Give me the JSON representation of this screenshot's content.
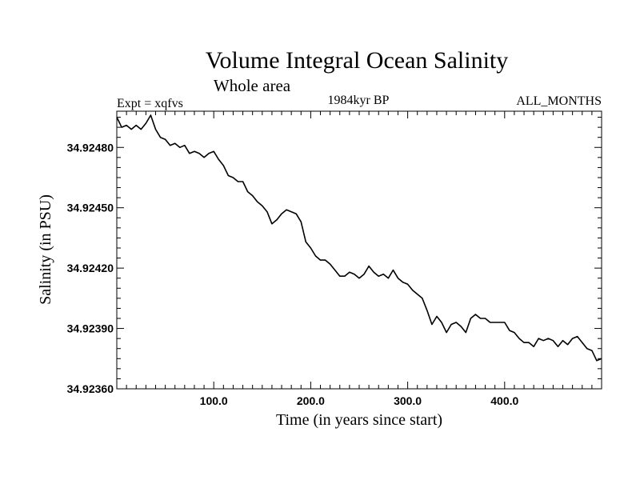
{
  "chart_data": {
    "type": "line",
    "title": "Volume Integral Ocean Salinity",
    "subtitle": "Whole area",
    "label_left": "Expt = xqfvs",
    "label_center": "1984kyr BP",
    "label_right": "ALL_MONTHS",
    "xlabel": "Time (in years since start)",
    "ylabel": "Salinity (in PSU)",
    "xlim": [
      0,
      500
    ],
    "ylim": [
      34.9236,
      34.92498
    ],
    "x_ticks": [
      100,
      200,
      300,
      400
    ],
    "x_tick_labels": [
      "100.0",
      "200.0",
      "300.0",
      "400.0"
    ],
    "y_ticks": [
      34.9236,
      34.9239,
      34.9242,
      34.9245,
      34.9248
    ],
    "y_tick_labels": [
      "34.92360",
      "34.92390",
      "34.92420",
      "34.92450",
      "34.92480"
    ],
    "grid": false,
    "series": [
      {
        "name": "Salinity",
        "color": "#000000",
        "x": [
          0,
          5,
          10,
          15,
          20,
          25,
          30,
          35,
          40,
          45,
          50,
          55,
          60,
          65,
          70,
          75,
          80,
          85,
          90,
          95,
          100,
          105,
          110,
          115,
          120,
          125,
          130,
          135,
          140,
          145,
          150,
          155,
          160,
          165,
          170,
          175,
          180,
          185,
          190,
          195,
          200,
          205,
          210,
          215,
          220,
          225,
          230,
          235,
          240,
          245,
          250,
          255,
          260,
          265,
          270,
          275,
          280,
          285,
          290,
          295,
          300,
          305,
          310,
          315,
          320,
          325,
          330,
          335,
          340,
          345,
          350,
          355,
          360,
          365,
          370,
          375,
          380,
          385,
          390,
          395,
          400,
          405,
          410,
          415,
          420,
          425,
          430,
          435,
          440,
          445,
          450,
          455,
          460,
          465,
          470,
          475,
          480,
          485,
          490,
          495,
          500
        ],
        "values": [
          34.92495,
          34.9249,
          34.92491,
          34.92489,
          34.92491,
          34.92489,
          34.92492,
          34.92496,
          34.92489,
          34.92485,
          34.92484,
          34.92481,
          34.92482,
          34.9248,
          34.92481,
          34.92477,
          34.92478,
          34.92477,
          34.92475,
          34.92477,
          34.92478,
          34.92474,
          34.92471,
          34.92466,
          34.92465,
          34.92463,
          34.92463,
          34.92458,
          34.92456,
          34.92453,
          34.92451,
          34.92448,
          34.92442,
          34.92444,
          34.92447,
          34.92449,
          34.92448,
          34.92447,
          34.92443,
          34.92433,
          34.9243,
          34.92426,
          34.92424,
          34.92424,
          34.92422,
          34.92419,
          34.92416,
          34.92416,
          34.92418,
          34.92417,
          34.92415,
          34.92417,
          34.92421,
          34.92418,
          34.92416,
          34.92417,
          34.92415,
          34.92419,
          34.92415,
          34.92413,
          34.92412,
          34.92409,
          34.92407,
          34.92405,
          34.92399,
          34.92392,
          34.92396,
          34.92393,
          34.92388,
          34.92392,
          34.92393,
          34.92391,
          34.92388,
          34.92395,
          34.92397,
          34.92395,
          34.92395,
          34.92393,
          34.92393,
          34.92393,
          34.92393,
          34.92389,
          34.92388,
          34.92385,
          34.92383,
          34.92383,
          34.92381,
          34.92385,
          34.92384,
          34.92385,
          34.92384,
          34.92381,
          34.92384,
          34.92382,
          34.92385,
          34.92386,
          34.92383,
          34.9238,
          34.92379,
          34.92374,
          34.92375
        ]
      }
    ]
  }
}
